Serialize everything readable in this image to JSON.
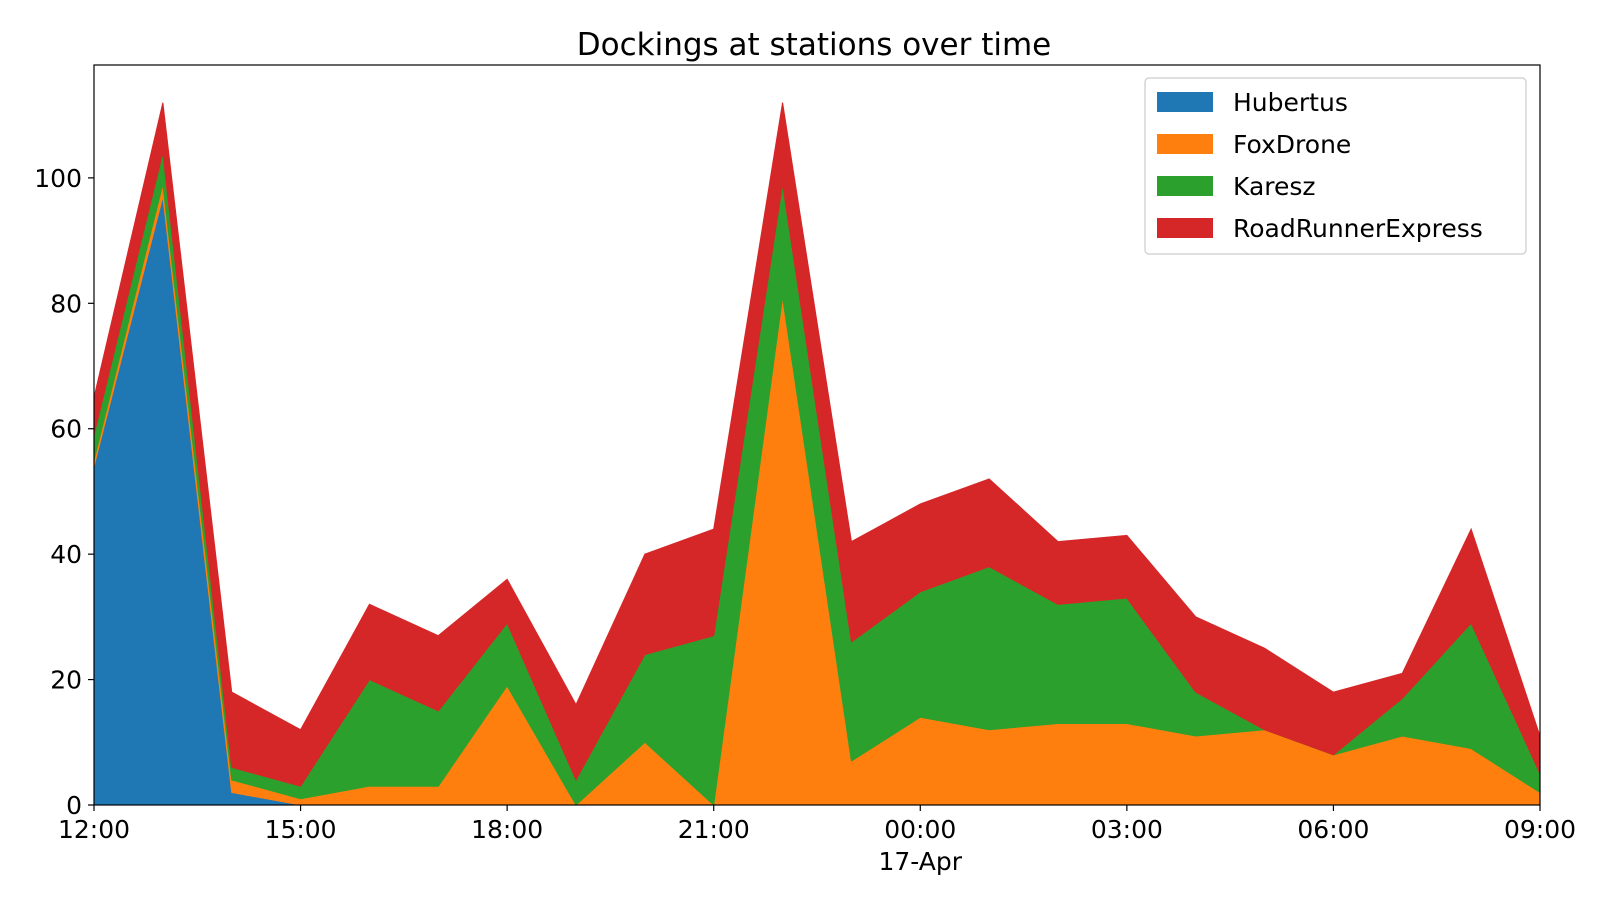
{
  "chart_data": {
    "type": "area",
    "stacked": true,
    "title": "Dockings at stations over time",
    "xlabel": "",
    "ylabel": "",
    "x": [
      "12:00",
      "13:00",
      "14:00",
      "15:00",
      "16:00",
      "17:00",
      "18:00",
      "19:00",
      "20:00",
      "21:00",
      "22:00",
      "23:00",
      "00:00",
      "01:00",
      "02:00",
      "03:00",
      "04:00",
      "05:00",
      "06:00",
      "07:00",
      "08:00",
      "09:00"
    ],
    "x_ticks": [
      {
        "index": 0,
        "label": "12:00"
      },
      {
        "index": 3,
        "label": "15:00"
      },
      {
        "index": 6,
        "label": "18:00"
      },
      {
        "index": 9,
        "label": "21:00"
      },
      {
        "index": 12,
        "label": "00:00"
      },
      {
        "index": 15,
        "label": "03:00"
      },
      {
        "index": 18,
        "label": "06:00"
      },
      {
        "index": 21,
        "label": "09:00"
      }
    ],
    "x_date_label": {
      "index": 12,
      "label": "17-Apr"
    },
    "ylim": [
      0,
      118
    ],
    "y_ticks": [
      0,
      20,
      40,
      60,
      80,
      100
    ],
    "grid": false,
    "legend_position": "top-right",
    "series": [
      {
        "name": "Hubertus",
        "color": "#1f77b4",
        "values": [
          54,
          97,
          2,
          0,
          0,
          0,
          0,
          0,
          0,
          0,
          0,
          0,
          0,
          0,
          0,
          0,
          0,
          0,
          0,
          0,
          0,
          0
        ]
      },
      {
        "name": "FoxDrone",
        "color": "#ff7f0e",
        "values": [
          1,
          2,
          2,
          1,
          3,
          3,
          19,
          0,
          10,
          0,
          81,
          7,
          14,
          12,
          13,
          13,
          11,
          12,
          8,
          11,
          9,
          2
        ]
      },
      {
        "name": "Karesz",
        "color": "#2ca02c",
        "values": [
          4,
          5,
          2,
          2,
          17,
          12,
          10,
          4,
          14,
          27,
          18,
          19,
          20,
          26,
          19,
          20,
          7,
          0,
          0,
          6,
          20,
          3
        ]
      },
      {
        "name": "RoadRunnerExpress",
        "color": "#d62728",
        "values": [
          6,
          8,
          12,
          9,
          12,
          12,
          7,
          12,
          16,
          17,
          13,
          16,
          14,
          14,
          10,
          10,
          12,
          13,
          10,
          4,
          15,
          6
        ]
      }
    ]
  }
}
